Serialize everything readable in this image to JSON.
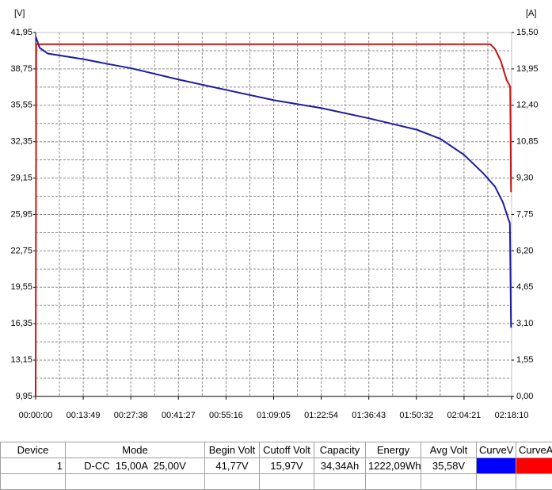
{
  "chart_data": {
    "type": "line",
    "ylabel": "[V]",
    "y2label": "[A]",
    "xlim": [
      0,
      8290
    ],
    "xticks": [
      {
        "value": 0,
        "label": "00:00:00"
      },
      {
        "value": 829,
        "label": "00:13:49"
      },
      {
        "value": 1658,
        "label": "00:27:38"
      },
      {
        "value": 2487,
        "label": "00:41:27"
      },
      {
        "value": 3316,
        "label": "00:55:16"
      },
      {
        "value": 4145,
        "label": "01:09:05"
      },
      {
        "value": 4974,
        "label": "01:22:54"
      },
      {
        "value": 5803,
        "label": "01:36:43"
      },
      {
        "value": 6632,
        "label": "01:50:32"
      },
      {
        "value": 7461,
        "label": "02:04:21"
      },
      {
        "value": 8290,
        "label": "02:18:10"
      }
    ],
    "ylim": [
      9.95,
      41.95
    ],
    "yticks": [
      {
        "value": 9.95,
        "label": "9,95"
      },
      {
        "value": 13.15,
        "label": "13,15"
      },
      {
        "value": 16.35,
        "label": "16,35"
      },
      {
        "value": 19.55,
        "label": "19,55"
      },
      {
        "value": 22.75,
        "label": "22,75"
      },
      {
        "value": 25.95,
        "label": "25,95"
      },
      {
        "value": 29.15,
        "label": "29,15"
      },
      {
        "value": 32.35,
        "label": "32,35"
      },
      {
        "value": 35.55,
        "label": "35,55"
      },
      {
        "value": 38.75,
        "label": "38,75"
      },
      {
        "value": 41.95,
        "label": "41,95"
      }
    ],
    "y2lim": [
      0,
      15.5
    ],
    "y2ticks": [
      {
        "value": 0,
        "label": "0,00"
      },
      {
        "value": 1.55,
        "label": "1,55"
      },
      {
        "value": 3.1,
        "label": "3,10"
      },
      {
        "value": 4.65,
        "label": "4,65"
      },
      {
        "value": 6.2,
        "label": "6,20"
      },
      {
        "value": 7.75,
        "label": "7,75"
      },
      {
        "value": 9.3,
        "label": "9,30"
      },
      {
        "value": 10.85,
        "label": "10,85"
      },
      {
        "value": 12.4,
        "label": "12,40"
      },
      {
        "value": 13.95,
        "label": "13,95"
      },
      {
        "value": 15.5,
        "label": "15,50"
      }
    ],
    "grid": true,
    "series": [
      {
        "color": "#1c1ca0",
        "axis": "y",
        "x": [
          0,
          70,
          210,
          840,
          1240,
          1670,
          2500,
          3320,
          4150,
          4980,
          5810,
          6640,
          7050,
          7460,
          7790,
          8000,
          8140,
          8230,
          8260,
          8280
        ],
        "values": [
          41.6,
          40.6,
          40.1,
          39.6,
          39.2,
          38.8,
          37.8,
          36.9,
          36.0,
          35.3,
          34.4,
          33.4,
          32.6,
          31.2,
          29.6,
          28.4,
          27.0,
          25.6,
          25.2,
          16.0
        ]
      },
      {
        "color": "#c81414",
        "axis": "y2",
        "x": [
          0,
          10,
          7920,
          8000,
          8100,
          8200,
          8265,
          8280
        ],
        "values": [
          0,
          15.0,
          15.0,
          14.8,
          14.3,
          13.5,
          13.2,
          8.7
        ]
      }
    ]
  },
  "table": {
    "headers": [
      "Device",
      "Mode",
      "Begin Volt",
      "Cutoff Volt",
      "Capacity",
      "Energy",
      "Avg Volt",
      "CurveV",
      "CurveA"
    ],
    "rows": [
      [
        "1",
        "D-CC  15,00A  25,00V",
        "41,77V",
        "15,97V",
        "34,34Ah",
        "1222,09Wh",
        "35,58V"
      ]
    ],
    "swatch_colors": [
      "#0000ff",
      "#ff0000"
    ]
  }
}
